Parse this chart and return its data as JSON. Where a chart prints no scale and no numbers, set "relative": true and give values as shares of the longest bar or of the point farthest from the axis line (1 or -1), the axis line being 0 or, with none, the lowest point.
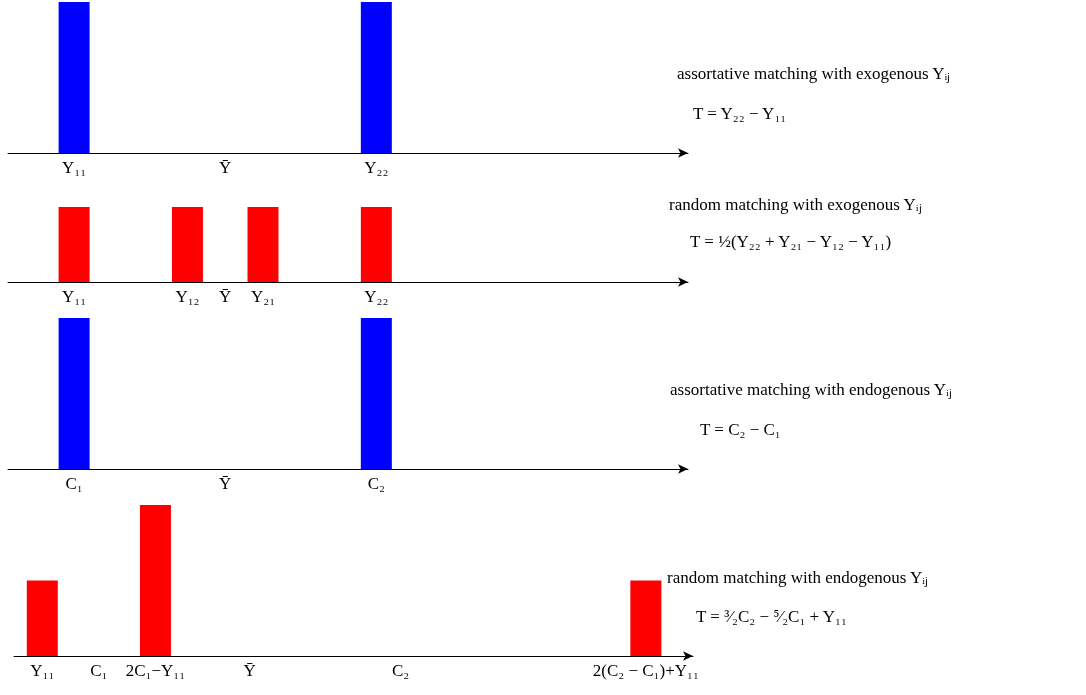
{
  "chart_data": [
    {
      "type": "bar",
      "relative": true,
      "color": "#0000ff",
      "categories": [
        null,
        null,
        null,
        "Y₁₁",
        null,
        null,
        null,
        null,
        null,
        null,
        null,
        "Ȳ",
        null,
        null,
        null,
        null,
        null,
        null,
        null,
        "Y₂₂",
        null,
        null,
        null,
        null,
        null,
        null,
        null,
        null,
        null,
        null,
        null,
        null,
        null,
        null,
        null,
        null
      ],
      "values": [
        null,
        null,
        null,
        1,
        null,
        null,
        null,
        null,
        null,
        null,
        null,
        null,
        null,
        null,
        null,
        null,
        null,
        null,
        null,
        1,
        null,
        null,
        null,
        null,
        null,
        null,
        null,
        null,
        null,
        null,
        null,
        null,
        null,
        null,
        null,
        null
      ],
      "annotations": [
        "assortative matching with exogenous Yᵢⱼ",
        "T = Y₂₂ − Y₁₁"
      ]
    },
    {
      "type": "bar",
      "relative": true,
      "color": "#ff0000",
      "categories": [
        null,
        null,
        null,
        "Y₁₁",
        null,
        null,
        null,
        null,
        null,
        "Y₁₂",
        null,
        "Ȳ",
        null,
        "Y₂₁",
        null,
        null,
        null,
        null,
        null,
        "Y₂₂",
        null,
        null,
        null,
        null,
        null,
        null,
        null,
        null,
        null,
        null,
        null,
        null,
        null,
        null,
        null,
        null
      ],
      "values": [
        null,
        null,
        null,
        1,
        null,
        null,
        null,
        null,
        null,
        1,
        null,
        null,
        null,
        1,
        null,
        null,
        null,
        null,
        null,
        1,
        null,
        null,
        null,
        null,
        null,
        null,
        null,
        null,
        null,
        null,
        null,
        null,
        null,
        null,
        null,
        null
      ],
      "annotations": [
        "random matching with exogenous Yᵢⱼ",
        "T = ½(Y₂₂ + Y₂₁ − Y₁₂ − Y₁₁)"
      ]
    },
    {
      "type": "bar",
      "relative": true,
      "color": "#0000ff",
      "categories": [
        null,
        null,
        null,
        "C₁",
        null,
        null,
        null,
        null,
        null,
        null,
        null,
        "Ȳ",
        null,
        null,
        null,
        null,
        null,
        null,
        null,
        "C₂",
        null,
        null,
        null,
        null,
        null,
        null,
        null,
        null,
        null,
        null,
        null,
        null,
        null,
        null,
        null,
        null
      ],
      "values": [
        null,
        null,
        null,
        1,
        null,
        null,
        null,
        null,
        null,
        null,
        null,
        null,
        null,
        null,
        null,
        null,
        null,
        null,
        null,
        1,
        null,
        null,
        null,
        null,
        null,
        null,
        null,
        null,
        null,
        null,
        null,
        null,
        null,
        null,
        null,
        null
      ],
      "annotations": [
        "assortative matching with endogenous Yᵢⱼ",
        "T = C₂ − C₁"
      ]
    },
    {
      "type": "bar",
      "relative": true,
      "color": "#ff0000",
      "categories": [
        null,
        "Y₁₁",
        null,
        null,
        "C₁",
        null,
        null,
        "2C₁−Y₁₁",
        null,
        null,
        null,
        null,
        "Ȳ",
        null,
        null,
        null,
        null,
        null,
        null,
        null,
        "C₂",
        null,
        null,
        null,
        null,
        null,
        null,
        null,
        null,
        null,
        null,
        null,
        null,
        "2(C₂ − C₁)+Y₁₁",
        null,
        null
      ],
      "values": [
        null,
        0.5,
        null,
        null,
        null,
        null,
        null,
        1,
        null,
        null,
        null,
        null,
        null,
        null,
        null,
        null,
        null,
        null,
        null,
        null,
        null,
        null,
        null,
        null,
        null,
        null,
        null,
        null,
        null,
        null,
        null,
        null,
        null,
        0.5,
        null,
        null
      ],
      "annotations": [
        "random matching with endogenous Yᵢⱼ",
        "T = ³⁄₂C₂ − ⁵⁄₂C₁ + Y₁₁"
      ]
    }
  ]
}
